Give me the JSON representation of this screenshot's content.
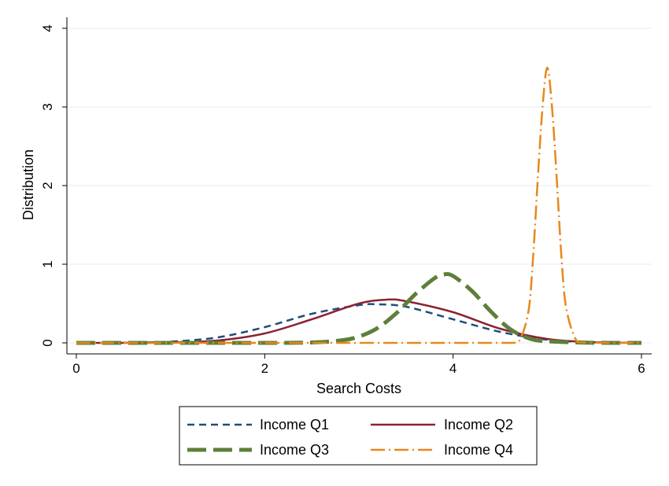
{
  "chart_data": {
    "type": "line",
    "title": "",
    "xlabel": "Search Costs",
    "ylabel": "Distribution",
    "xlim": [
      0,
      6
    ],
    "ylim": [
      0,
      4
    ],
    "x_ticks": [
      0,
      2,
      4,
      6
    ],
    "y_ticks": [
      0,
      1,
      2,
      3,
      4
    ],
    "grid": true,
    "legend_position": "bottom",
    "series": [
      {
        "name": "Income Q1",
        "color": "#1f4e79",
        "style": "dash",
        "x": [
          0,
          0.5,
          1.0,
          1.5,
          2.0,
          2.5,
          3.0,
          3.2,
          3.5,
          4.0,
          4.5,
          5.0,
          5.5,
          6.0
        ],
        "y": [
          0.0,
          0.002,
          0.016,
          0.07,
          0.2,
          0.37,
          0.48,
          0.49,
          0.46,
          0.3,
          0.14,
          0.04,
          0.008,
          0.001
        ]
      },
      {
        "name": "Income Q2",
        "color": "#8b2332",
        "style": "solid",
        "x": [
          0,
          0.5,
          1.0,
          1.5,
          2.0,
          2.5,
          3.0,
          3.3,
          3.5,
          4.0,
          4.5,
          5.0,
          5.5,
          6.0
        ],
        "y": [
          0.0,
          0.0,
          0.004,
          0.03,
          0.12,
          0.3,
          0.5,
          0.55,
          0.53,
          0.39,
          0.18,
          0.05,
          0.008,
          0.001
        ]
      },
      {
        "name": "Income Q3",
        "color": "#5e7f3a",
        "style": "longdash",
        "x": [
          0,
          1.0,
          2.0,
          2.5,
          2.8,
          3.0,
          3.2,
          3.4,
          3.6,
          3.8,
          3.9,
          4.0,
          4.2,
          4.4,
          4.6,
          4.8,
          5.0,
          5.5,
          6.0
        ],
        "y": [
          0.0,
          0.0,
          0.0,
          0.005,
          0.03,
          0.08,
          0.19,
          0.38,
          0.62,
          0.82,
          0.87,
          0.85,
          0.66,
          0.4,
          0.18,
          0.06,
          0.02,
          0.001,
          0.0
        ]
      },
      {
        "name": "Income Q4",
        "color": "#e8881a",
        "style": "dashdot",
        "x": [
          0,
          1.0,
          2.0,
          3.0,
          4.0,
          4.6,
          4.7,
          4.8,
          4.85,
          4.9,
          4.95,
          5.0,
          5.05,
          5.1,
          5.15,
          5.2,
          5.3,
          5.4,
          6.0
        ],
        "y": [
          0.0,
          0.0,
          0.0,
          0.0,
          0.0,
          0.0,
          0.02,
          0.4,
          1.1,
          2.1,
          3.0,
          3.5,
          3.0,
          2.1,
          1.1,
          0.45,
          0.05,
          0.003,
          0.0
        ]
      }
    ]
  }
}
